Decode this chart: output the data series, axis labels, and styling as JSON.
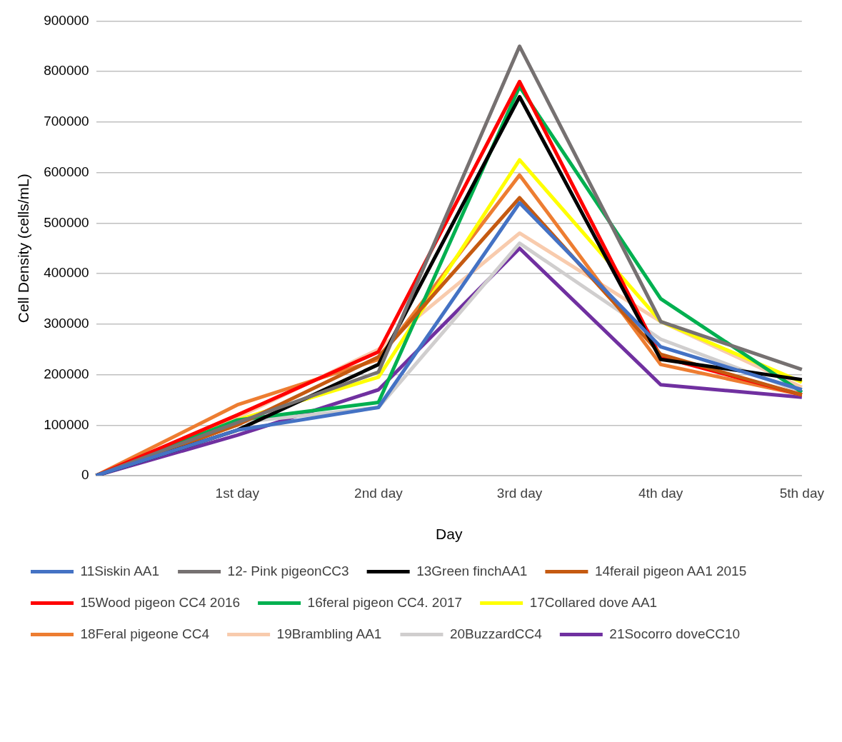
{
  "chart_data": {
    "type": "line",
    "xlabel": "Day",
    "ylabel": "Cell Density (cells/mL)",
    "categories": [
      null,
      "1st day",
      "2nd day",
      "3rd day",
      "4th day",
      "5th day"
    ],
    "ylim": [
      0,
      900000
    ],
    "yticks": [
      0,
      100000,
      200000,
      300000,
      400000,
      500000,
      600000,
      700000,
      800000,
      900000
    ],
    "grid": "y",
    "legend": "bottom",
    "marker": "none",
    "line_style": "solid",
    "series": [
      {
        "name": "11Siskin AA1",
        "color": "#4472c4",
        "values": [
          0,
          90000,
          135000,
          540000,
          255000,
          170000
        ]
      },
      {
        "name": "12- Pink pigeonCC3",
        "color": "#767171",
        "values": [
          0,
          105000,
          205000,
          850000,
          305000,
          210000
        ]
      },
      {
        "name": "13Green finchAA1",
        "color": "#000000",
        "values": [
          0,
          90000,
          220000,
          750000,
          230000,
          190000
        ]
      },
      {
        "name": "14ferail pigeon AA1 2015",
        "color": "#c55a11",
        "values": [
          0,
          100000,
          235000,
          550000,
          240000,
          160000
        ]
      },
      {
        "name": "15Wood pigeon CC4 2016",
        "color": "#ff0000",
        "values": [
          0,
          120000,
          245000,
          780000,
          235000,
          160000
        ]
      },
      {
        "name": "16feral pigeon CC4. 2017",
        "color": "#00b050",
        "values": [
          0,
          110000,
          145000,
          770000,
          350000,
          165000
        ]
      },
      {
        "name": "17Collared dove AA1",
        "color": "#ffff00",
        "values": [
          0,
          110000,
          195000,
          625000,
          305000,
          185000
        ]
      },
      {
        "name": "18Feral pigeone CC4",
        "color": "#ed7d31",
        "values": [
          0,
          140000,
          230000,
          595000,
          220000,
          160000
        ]
      },
      {
        "name": "19Brambling AA1",
        "color": "#f8cbad",
        "values": [
          0,
          115000,
          250000,
          480000,
          305000,
          175000
        ]
      },
      {
        "name": "20BuzzardCC4",
        "color": "#d0cece",
        "values": [
          0,
          105000,
          135000,
          460000,
          270000,
          165000
        ]
      },
      {
        "name": "21Socorro doveCC10",
        "color": "#7030a0",
        "values": [
          0,
          80000,
          170000,
          450000,
          180000,
          155000
        ]
      }
    ]
  }
}
